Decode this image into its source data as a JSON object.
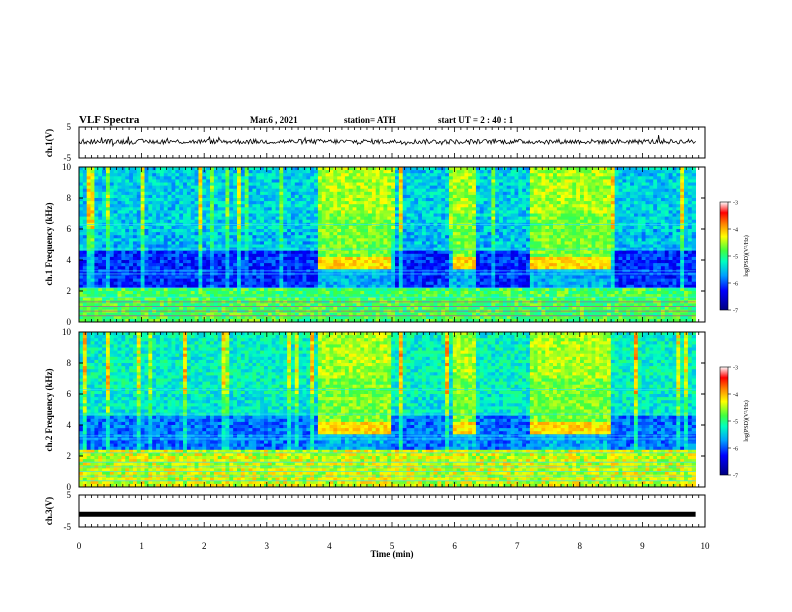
{
  "header": {
    "title": "VLF Spectra",
    "date": "Mar.6 , 2021",
    "station": "station= ATH",
    "start": "start UT = 2 : 40 : 1"
  },
  "chart_data": [
    {
      "type": "line",
      "panel": "ch1-waveform",
      "ylabel": "ch.1(V)",
      "ylim": [
        -5,
        5
      ],
      "yticks": [
        "5",
        "-5"
      ],
      "xlim": [
        0,
        10
      ],
      "description_level": 0.3
    },
    {
      "type": "heatmap",
      "panel": "ch1-spectrogram",
      "ylabel": "ch.1 Frequency (kHz)",
      "ylim": [
        0,
        10
      ],
      "yticks": [
        "0",
        "2",
        "4",
        "6",
        "8",
        "10"
      ],
      "xlim": [
        0,
        10
      ],
      "time_end": 9.85,
      "colorbar": {
        "label": "log(PSD)(V²/Hz)",
        "range": [
          -7,
          -3
        ],
        "ticks": [
          "-3",
          "-4",
          "-5",
          "-6",
          "-7"
        ]
      },
      "high_activity_intervals": [
        [
          3.8,
          5.0
        ],
        [
          6.0,
          6.35
        ],
        [
          7.2,
          8.5
        ]
      ],
      "band_line_khz": 3.8,
      "spheric_band_khz": [
        0.0,
        2.2
      ]
    },
    {
      "type": "heatmap",
      "panel": "ch2-spectrogram",
      "ylabel": "ch.2 Frequency (kHz)",
      "ylim": [
        0,
        10
      ],
      "yticks": [
        "0",
        "2",
        "4",
        "6",
        "8",
        "10"
      ],
      "xlim": [
        0,
        10
      ],
      "time_end": 9.85,
      "colorbar": {
        "label": "log(PSD)(V²/Hz)",
        "range": [
          -7,
          -3
        ],
        "ticks": [
          "-3",
          "-4",
          "-5",
          "-6",
          "-7"
        ]
      },
      "high_activity_intervals": [
        [
          3.8,
          5.0
        ],
        [
          6.0,
          6.35
        ],
        [
          7.2,
          8.5
        ]
      ],
      "band_line_khz": 3.8,
      "spheric_band_khz": [
        0.0,
        2.5
      ]
    },
    {
      "type": "line",
      "panel": "ch3-waveform",
      "ylabel": "ch.3(V)",
      "ylim": [
        -5,
        5
      ],
      "yticks": [
        "5",
        "-5"
      ],
      "xlim": [
        0,
        10
      ],
      "level": -1.0
    }
  ],
  "xaxis": {
    "label": "Time (min)",
    "ticks": [
      "0",
      "1",
      "2",
      "3",
      "4",
      "5",
      "6",
      "7",
      "8",
      "9",
      "10"
    ]
  },
  "colors": {
    "colormap": [
      "#000080",
      "#0000ff",
      "#00a0ff",
      "#00ffc0",
      "#40ff40",
      "#ffff00",
      "#ff8000",
      "#ff0000",
      "#ffffff"
    ]
  }
}
